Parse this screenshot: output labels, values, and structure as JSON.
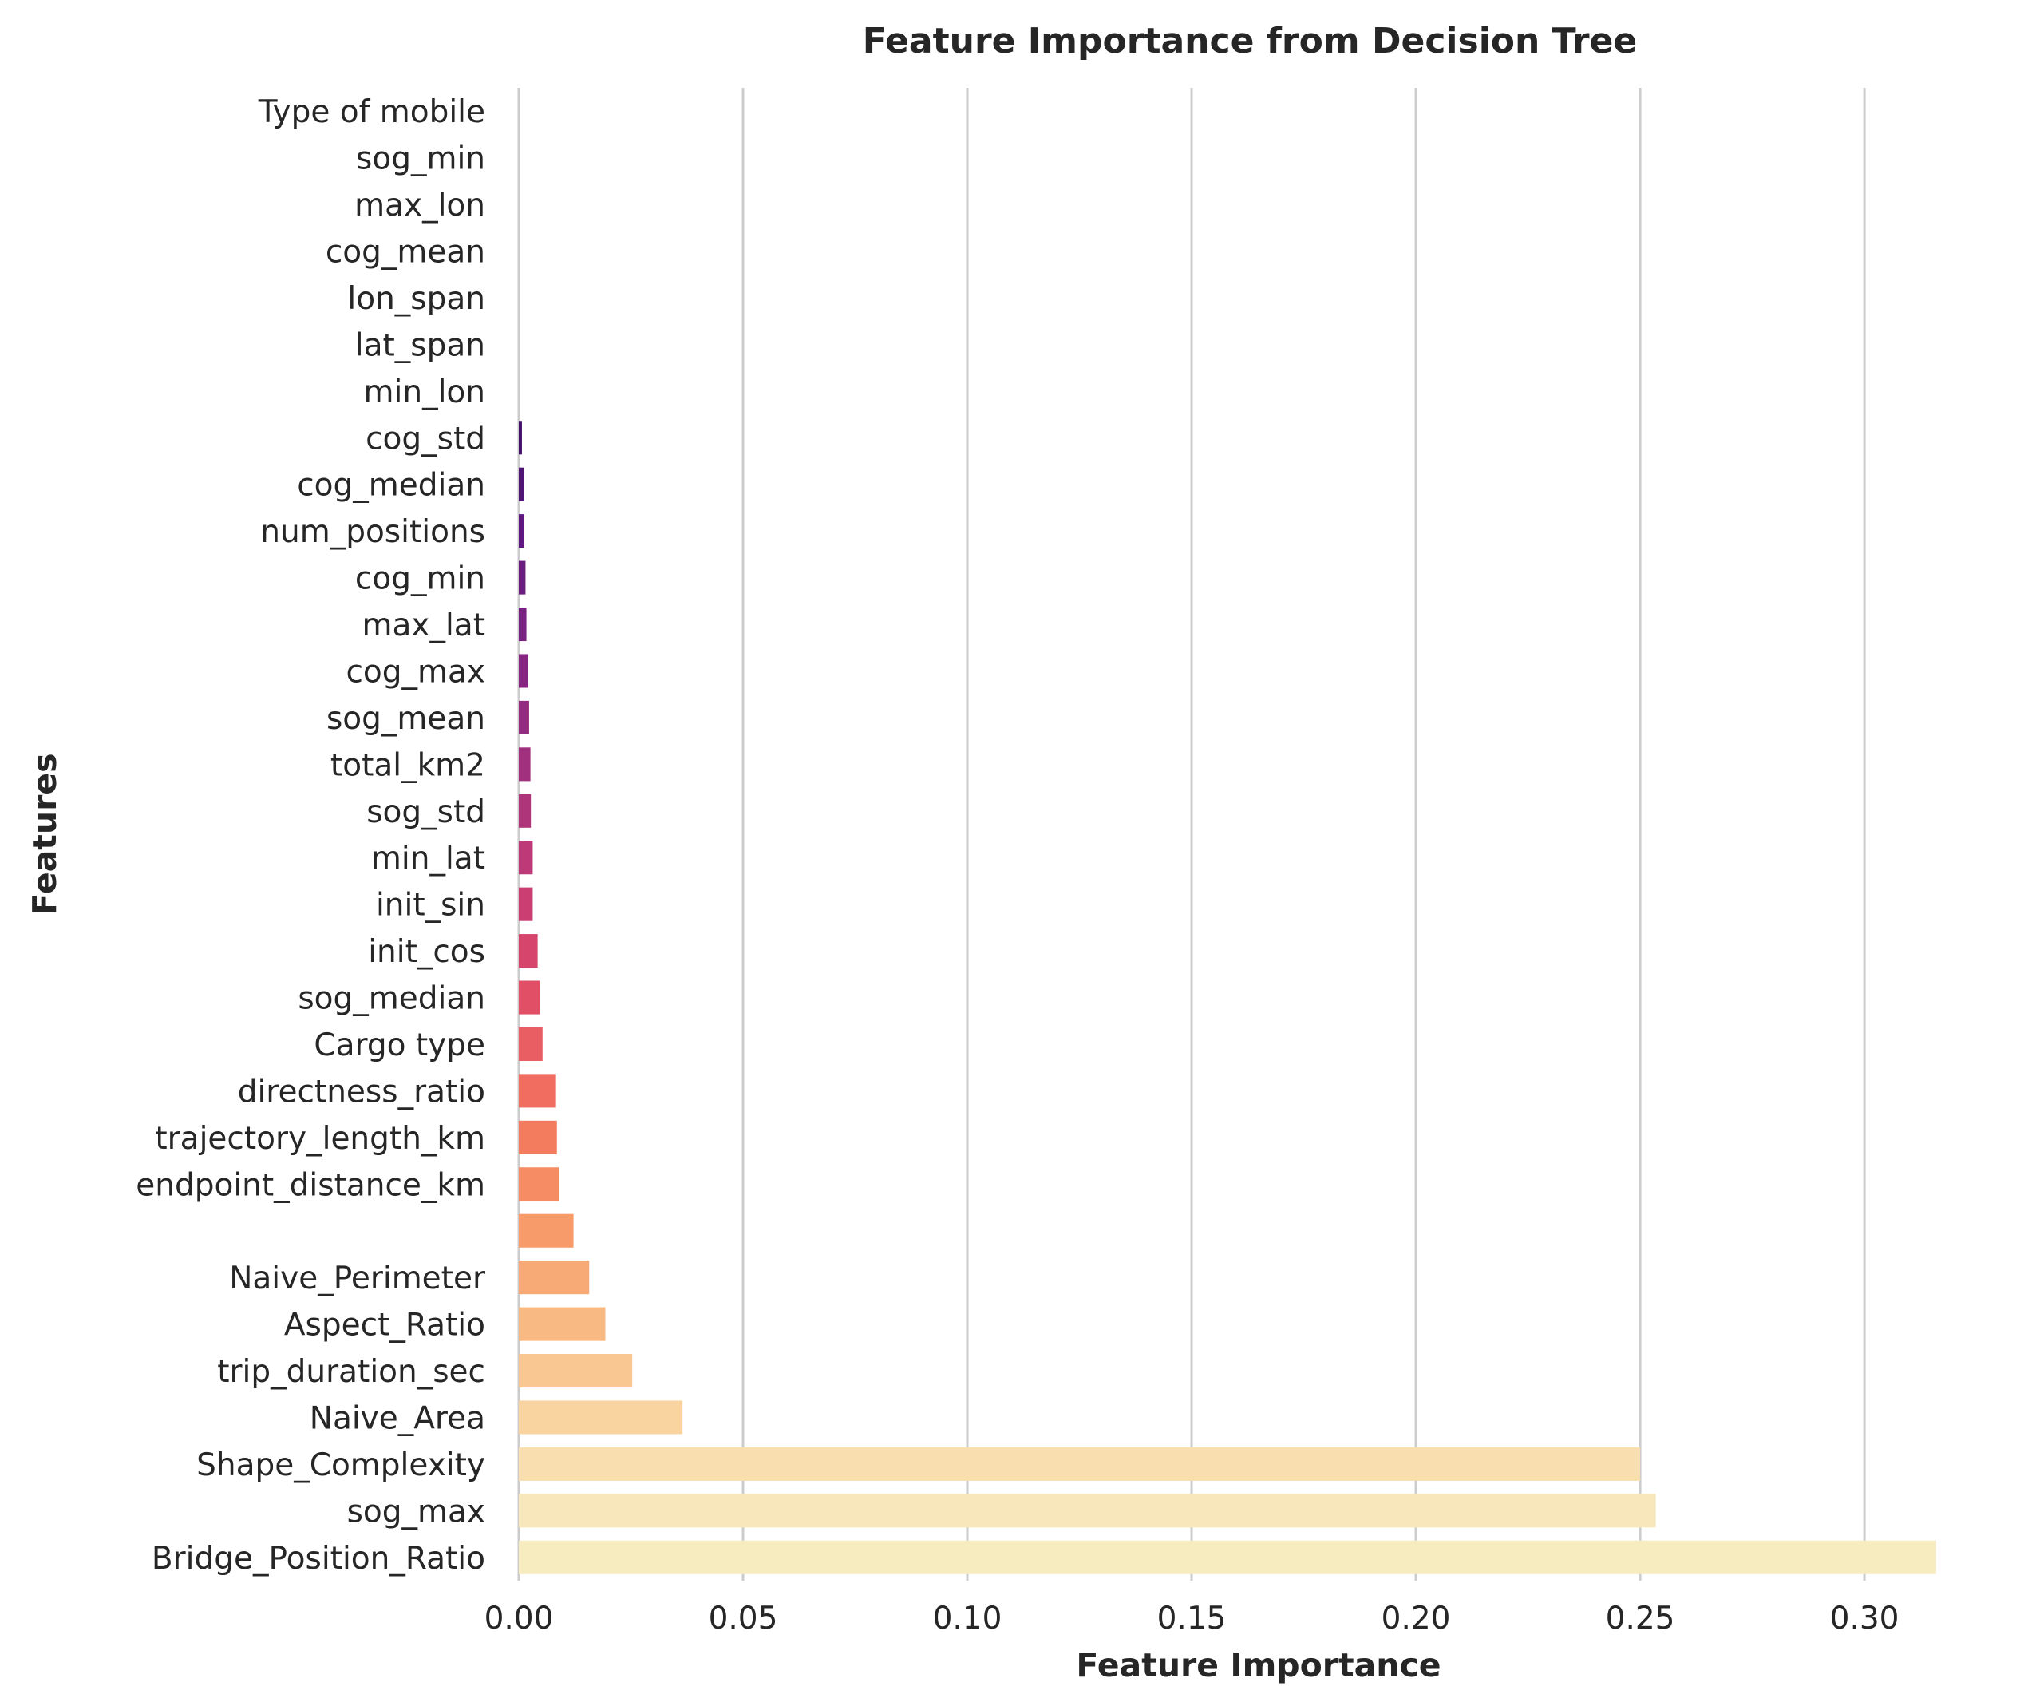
{
  "chart_data": {
    "type": "bar",
    "orientation": "horizontal",
    "title": "Feature Importance from Decision Tree",
    "xlabel": "Feature Importance",
    "ylabel": "Features",
    "xlim": [
      0,
      0.316
    ],
    "xticks": [
      "0.00",
      "0.05",
      "0.10",
      "0.15",
      "0.20",
      "0.25",
      "0.30"
    ],
    "grid": "vertical",
    "legend": "none",
    "palette": "magma",
    "categories": [
      "Type of mobile",
      "sog_min",
      "max_lon",
      "cog_mean",
      "lon_span",
      "lat_span",
      "min_lon",
      "cog_std",
      "cog_median",
      "num_positions",
      "cog_min",
      "max_lat",
      "cog_max",
      "sog_mean",
      "total_km2",
      "sog_std",
      "min_lat",
      "init_sin",
      "init_cos",
      "sog_median",
      "Cargo type",
      "directness_ratio",
      "trajectory_length_km",
      "endpoint_distance_km",
      "",
      "Naive_Perimeter",
      "Aspect_Ratio",
      "trip_duration_sec",
      "Naive_Area",
      "Shape_Complexity",
      "sog_max",
      "Bridge_Position_Ratio"
    ],
    "values": [
      0.0,
      0.0,
      0.0,
      0.0,
      0.0,
      0.0,
      0.0,
      0.0007,
      0.0011,
      0.0012,
      0.0015,
      0.0017,
      0.0021,
      0.0023,
      0.0026,
      0.0027,
      0.0031,
      0.0031,
      0.0042,
      0.0047,
      0.0053,
      0.0083,
      0.0085,
      0.0089,
      0.0122,
      0.0157,
      0.0193,
      0.0253,
      0.0365,
      0.25,
      0.2535,
      0.316
    ],
    "colors": [
      "#000004",
      "#02020c",
      "#07061c",
      "#0f0c2e",
      "#1a0f40",
      "#261051",
      "#34105d",
      "#42106a",
      "#501376",
      "#5d177e",
      "#6b1c81",
      "#782281",
      "#852781",
      "#932b80",
      "#a1307e",
      "#af357b",
      "#bd3977",
      "#ca3e72",
      "#d6456c",
      "#e04f66",
      "#e95e62",
      "#f06d5f",
      "#f47c5e",
      "#f68c63",
      "#f79b6b",
      "#f8aa76",
      "#f8b982",
      "#f9c792",
      "#f9d4a1",
      "#f9dfb0",
      "#f9e7bc",
      "#f7ecbf"
    ]
  }
}
